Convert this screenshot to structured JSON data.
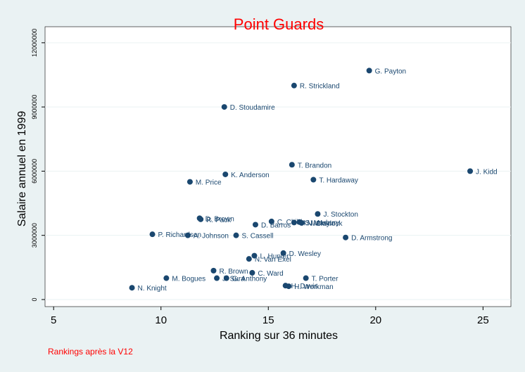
{
  "chart_data": {
    "type": "scatter",
    "title": "Point Guards",
    "xlabel": "Ranking sur 36 minutes",
    "ylabel": "Salaire annuel en 1999",
    "note": "Rankings après la V12",
    "xlim": [
      4.6,
      26.3
    ],
    "ylim": [
      -330000,
      12750000
    ],
    "xticks": [
      5,
      10,
      15,
      20,
      25
    ],
    "xtick_labels": [
      "5",
      "10",
      "15",
      "20",
      "25"
    ],
    "yticks": [
      0,
      3000000,
      6000000,
      9000000,
      12000000
    ],
    "ytick_labels": [
      "0",
      "3000000",
      "6000000",
      "9000000",
      "12000000"
    ],
    "grid": true,
    "colors": {
      "background": "#eaf2f3",
      "plot_background": "#ffffff",
      "marker": "#1a476f",
      "title": "#ff0000",
      "note": "#ff0000"
    },
    "points": [
      {
        "label": "G. Payton",
        "x": 19.7,
        "y": 10700000
      },
      {
        "label": "R. Strickland",
        "x": 16.2,
        "y": 10000000
      },
      {
        "label": "D. Stoudamire",
        "x": 12.95,
        "y": 9000000
      },
      {
        "label": "J. Kidd",
        "x": 24.4,
        "y": 6000000
      },
      {
        "label": "T. Brandon",
        "x": 16.1,
        "y": 6300000
      },
      {
        "label": "K. Anderson",
        "x": 13.0,
        "y": 5850000
      },
      {
        "label": "T. Hardaway",
        "x": 17.1,
        "y": 5600000
      },
      {
        "label": "M. Price",
        "x": 11.35,
        "y": 5500000
      },
      {
        "label": "J. Stockton",
        "x": 17.3,
        "y": 4000000
      },
      {
        "label": "D. Brown",
        "x": 11.8,
        "y": 3800000
      },
      {
        "label": "R. Pack",
        "x": 11.85,
        "y": 3750000
      },
      {
        "label": "C. Childs",
        "x": 15.15,
        "y": 3650000
      },
      {
        "label": "M. Jackson",
        "x": 16.2,
        "y": 3600000
      },
      {
        "label": "S. Marbury",
        "x": 16.45,
        "y": 3620000
      },
      {
        "label": "N. Blaylock",
        "x": 16.55,
        "y": 3580000
      },
      {
        "label": "D. Barros",
        "x": 14.4,
        "y": 3500000
      },
      {
        "label": "D. Armstrong",
        "x": 18.6,
        "y": 2900000
      },
      {
        "label": "P. Richardson",
        "x": 9.6,
        "y": 3050000
      },
      {
        "label": "A. Johnson",
        "x": 11.25,
        "y": 3000000
      },
      {
        "label": "S. Cassell",
        "x": 13.5,
        "y": 3000000
      },
      {
        "label": "D. Wesley",
        "x": 15.7,
        "y": 2170000
      },
      {
        "label": "L. Hunter",
        "x": 14.35,
        "y": 2050000
      },
      {
        "label": "N. Van Exel",
        "x": 14.1,
        "y": 1900000
      },
      {
        "label": "R. Brown",
        "x": 12.45,
        "y": 1350000
      },
      {
        "label": "C. Ward",
        "x": 14.25,
        "y": 1250000
      },
      {
        "label": "M. Bogues",
        "x": 10.25,
        "y": 1000000
      },
      {
        "label": "J. Sura",
        "x": 12.6,
        "y": 1000000
      },
      {
        "label": "G. Anthony",
        "x": 13.05,
        "y": 1000000
      },
      {
        "label": "T. Porter",
        "x": 16.75,
        "y": 1000000
      },
      {
        "label": "H. Davis",
        "x": 15.8,
        "y": 650000
      },
      {
        "label": "H. Workman",
        "x": 15.95,
        "y": 620000
      },
      {
        "label": "N. Knight",
        "x": 8.65,
        "y": 550000
      }
    ]
  }
}
